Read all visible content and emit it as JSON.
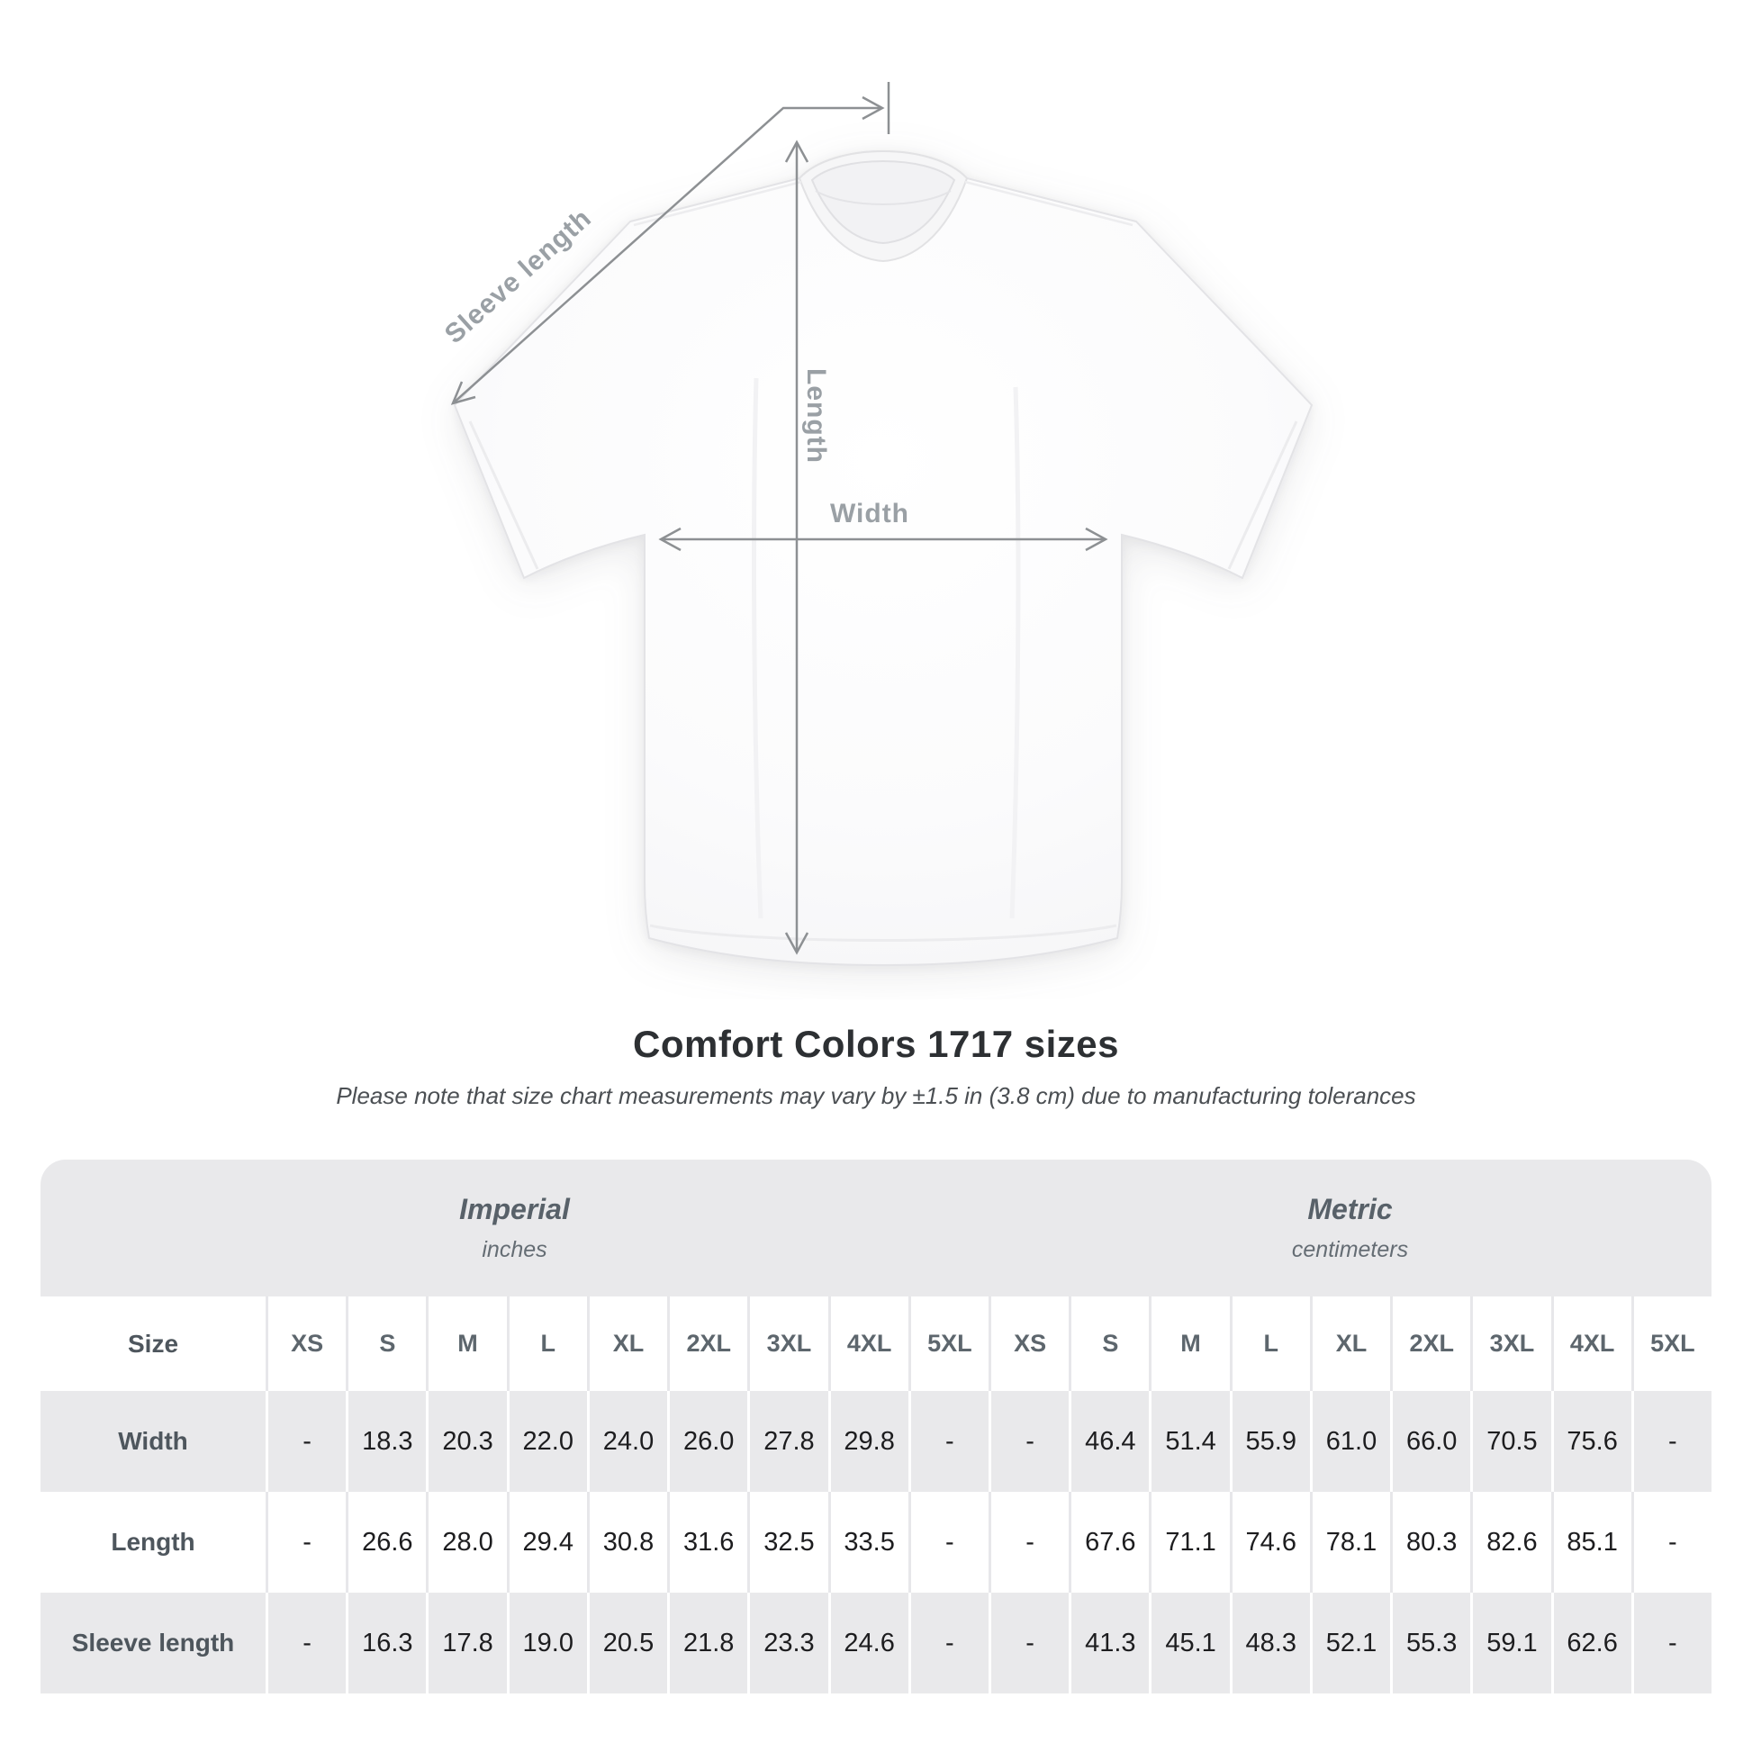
{
  "title": "Comfort Colors 1717 sizes",
  "subtitle": "Please note that size chart measurements may vary by ±1.5 in (3.8 cm) due to manufacturing tolerances",
  "diagram": {
    "labels": {
      "sleeve": "Sleeve length",
      "length": "Length",
      "width": "Width"
    }
  },
  "table": {
    "size_label": "Size",
    "unit_groups": [
      {
        "name": "Imperial",
        "unit": "inches"
      },
      {
        "name": "Metric",
        "unit": "centimeters"
      }
    ],
    "sizes": [
      "XS",
      "S",
      "M",
      "L",
      "XL",
      "2XL",
      "3XL",
      "4XL",
      "5XL"
    ],
    "rows": [
      {
        "label": "Width",
        "imperial": [
          "-",
          "18.3",
          "20.3",
          "22.0",
          "24.0",
          "26.0",
          "27.8",
          "29.8",
          "-"
        ],
        "metric": [
          "-",
          "46.4",
          "51.4",
          "55.9",
          "61.0",
          "66.0",
          "70.5",
          "75.6",
          "-"
        ]
      },
      {
        "label": "Length",
        "imperial": [
          "-",
          "26.6",
          "28.0",
          "29.4",
          "30.8",
          "31.6",
          "32.5",
          "33.5",
          "-"
        ],
        "metric": [
          "-",
          "67.6",
          "71.1",
          "74.6",
          "78.1",
          "80.3",
          "82.6",
          "85.1",
          "-"
        ]
      },
      {
        "label": "Sleeve length",
        "imperial": [
          "-",
          "16.3",
          "17.8",
          "19.0",
          "20.5",
          "21.8",
          "23.3",
          "24.6",
          "-"
        ],
        "metric": [
          "-",
          "41.3",
          "45.1",
          "48.3",
          "52.1",
          "55.3",
          "59.1",
          "62.6",
          "-"
        ]
      }
    ]
  },
  "chart_data": {
    "type": "table",
    "title": "Comfort Colors 1717 sizes",
    "columns": [
      "XS",
      "S",
      "M",
      "L",
      "XL",
      "2XL",
      "3XL",
      "4XL",
      "5XL"
    ],
    "series": [
      {
        "name": "Width (in)",
        "values": [
          null,
          18.3,
          20.3,
          22.0,
          24.0,
          26.0,
          27.8,
          29.8,
          null
        ]
      },
      {
        "name": "Length (in)",
        "values": [
          null,
          26.6,
          28.0,
          29.4,
          30.8,
          31.6,
          32.5,
          33.5,
          null
        ]
      },
      {
        "name": "Sleeve length (in)",
        "values": [
          null,
          16.3,
          17.8,
          19.0,
          20.5,
          21.8,
          23.3,
          24.6,
          null
        ]
      },
      {
        "name": "Width (cm)",
        "values": [
          null,
          46.4,
          51.4,
          55.9,
          61.0,
          66.0,
          70.5,
          75.6,
          null
        ]
      },
      {
        "name": "Length (cm)",
        "values": [
          null,
          67.6,
          71.1,
          74.6,
          78.1,
          80.3,
          82.6,
          85.1,
          null
        ]
      },
      {
        "name": "Sleeve length (cm)",
        "values": [
          null,
          41.3,
          45.1,
          48.3,
          52.1,
          55.3,
          59.1,
          62.6,
          null
        ]
      }
    ]
  },
  "colors": {
    "table_band": "#e9e9eb",
    "row_stripe": "#e9e9eb",
    "separator_on_white": "#e7e7ea",
    "arrow": "#8d9093",
    "measure_label": "#9aa0a5",
    "title_text": "#2d3033",
    "value_text": "#1d1d1f"
  }
}
